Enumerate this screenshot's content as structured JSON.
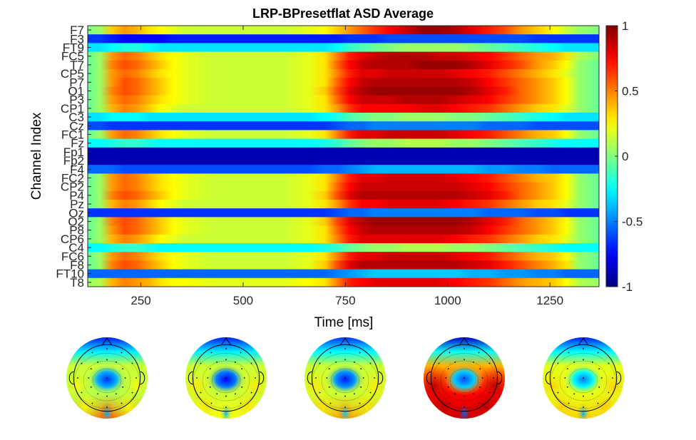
{
  "chart_data": {
    "type": "heatmap",
    "title": "LRP-BPresetflat ASD Average",
    "xlabel": "Time [ms]",
    "ylabel": "Channel Index",
    "xlim": [
      120,
      1370
    ],
    "x_ticks": [
      250,
      500,
      750,
      1000,
      1250
    ],
    "x_tick_labels": [
      "250",
      "500",
      "750",
      "1000",
      "1250"
    ],
    "channels": [
      "F7",
      "F3",
      "FT9",
      "FC5",
      "T7",
      "CP5",
      "P7",
      "O1",
      "P3",
      "CP1",
      "C3",
      "Cz",
      "FC1",
      "Fz",
      "Fp1",
      "Fp2",
      "F4",
      "FC2",
      "CP2",
      "P4",
      "Pz",
      "Oz",
      "O2",
      "P8",
      "CP6",
      "C4",
      "FC6",
      "F8",
      "FT10",
      "T8"
    ],
    "y_tick_labels": [
      "F7",
      "F3",
      "FT9",
      "FC5",
      "T7",
      "CP5",
      "P7",
      "O1",
      "P3",
      "CP1",
      "C3",
      "Cz",
      "FC1",
      "Fz",
      "Fp1",
      "Fp2",
      "F4",
      "FC2",
      "CP2",
      "P4",
      "Pz",
      "Oz",
      "O2",
      "P8",
      "CP6",
      "C4",
      "FC6",
      "F8",
      "FT10",
      "T8"
    ],
    "time_points": [
      120,
      150,
      180,
      210,
      240,
      270,
      300,
      330,
      360,
      420,
      480,
      540,
      600,
      660,
      700,
      730,
      760,
      790,
      820,
      860,
      900,
      940,
      980,
      1020,
      1060,
      1100,
      1140,
      1180,
      1220,
      1260,
      1290,
      1320,
      1370
    ],
    "values": [
      [
        0.0,
        0.05,
        0.35,
        0.45,
        0.4,
        0.3,
        0.25,
        0.2,
        0.15,
        0.15,
        0.15,
        0.15,
        0.15,
        0.2,
        0.25,
        0.35,
        0.45,
        0.55,
        0.65,
        0.75,
        0.85,
        0.95,
        0.95,
        0.9,
        0.8,
        0.7,
        0.6,
        0.45,
        0.35,
        0.25,
        0.15,
        0.05,
        0.0
      ],
      [
        -0.65,
        -0.65,
        -0.7,
        -0.75,
        -0.75,
        -0.75,
        -0.75,
        -0.7,
        -0.7,
        -0.7,
        -0.7,
        -0.7,
        -0.7,
        -0.7,
        -0.7,
        -0.7,
        -0.65,
        -0.65,
        -0.65,
        -0.6,
        -0.6,
        -0.6,
        -0.6,
        -0.6,
        -0.6,
        -0.6,
        -0.6,
        -0.6,
        -0.65,
        -0.65,
        -0.65,
        -0.65,
        -0.65
      ],
      [
        -0.3,
        -0.3,
        -0.25,
        -0.2,
        -0.2,
        -0.25,
        -0.3,
        -0.3,
        -0.3,
        -0.3,
        -0.3,
        -0.3,
        -0.3,
        -0.3,
        -0.3,
        -0.25,
        -0.15,
        -0.1,
        -0.05,
        0.0,
        0.05,
        0.05,
        0.05,
        0.05,
        0.0,
        -0.05,
        -0.1,
        -0.15,
        -0.2,
        -0.25,
        -0.3,
        -0.3,
        -0.3
      ],
      [
        -0.05,
        0.05,
        0.45,
        0.55,
        0.5,
        0.4,
        0.3,
        0.25,
        0.2,
        0.15,
        0.15,
        0.15,
        0.15,
        0.2,
        0.3,
        0.5,
        0.7,
        0.8,
        0.85,
        0.9,
        0.9,
        0.9,
        0.85,
        0.85,
        0.8,
        0.75,
        0.65,
        0.55,
        0.45,
        0.4,
        0.3,
        0.1,
        0.0
      ],
      [
        -0.05,
        0.05,
        0.5,
        0.6,
        0.55,
        0.45,
        0.35,
        0.25,
        0.2,
        0.15,
        0.15,
        0.15,
        0.15,
        0.2,
        0.3,
        0.55,
        0.75,
        0.85,
        0.9,
        0.9,
        0.9,
        0.95,
        0.95,
        0.95,
        0.9,
        0.8,
        0.7,
        0.6,
        0.45,
        0.35,
        0.25,
        0.05,
        -0.05
      ],
      [
        -0.05,
        0.05,
        0.45,
        0.55,
        0.5,
        0.4,
        0.3,
        0.25,
        0.2,
        0.15,
        0.15,
        0.15,
        0.15,
        0.2,
        0.3,
        0.5,
        0.7,
        0.8,
        0.8,
        0.85,
        0.85,
        0.85,
        0.85,
        0.8,
        0.75,
        0.7,
        0.6,
        0.5,
        0.4,
        0.3,
        0.2,
        0.05,
        -0.05
      ],
      [
        -0.05,
        0.05,
        0.45,
        0.6,
        0.55,
        0.45,
        0.35,
        0.25,
        0.2,
        0.15,
        0.15,
        0.15,
        0.15,
        0.2,
        0.3,
        0.55,
        0.75,
        0.85,
        0.9,
        0.9,
        0.9,
        0.9,
        0.9,
        0.9,
        0.85,
        0.75,
        0.65,
        0.55,
        0.45,
        0.35,
        0.25,
        0.05,
        -0.05
      ],
      [
        -0.05,
        0.05,
        0.5,
        0.6,
        0.55,
        0.45,
        0.35,
        0.25,
        0.2,
        0.15,
        0.15,
        0.15,
        0.15,
        0.2,
        0.35,
        0.6,
        0.8,
        0.9,
        0.95,
        0.95,
        0.95,
        0.95,
        0.95,
        0.95,
        0.9,
        0.8,
        0.7,
        0.55,
        0.45,
        0.35,
        0.25,
        0.05,
        -0.05
      ],
      [
        -0.05,
        0.05,
        0.45,
        0.55,
        0.5,
        0.4,
        0.3,
        0.25,
        0.2,
        0.15,
        0.15,
        0.15,
        0.15,
        0.2,
        0.3,
        0.55,
        0.75,
        0.85,
        0.85,
        0.85,
        0.9,
        0.9,
        0.9,
        0.85,
        0.8,
        0.75,
        0.65,
        0.55,
        0.45,
        0.35,
        0.25,
        0.05,
        -0.05
      ],
      [
        -0.05,
        0.05,
        0.4,
        0.5,
        0.45,
        0.35,
        0.25,
        0.2,
        0.15,
        0.15,
        0.15,
        0.15,
        0.15,
        0.2,
        0.3,
        0.45,
        0.65,
        0.75,
        0.75,
        0.75,
        0.75,
        0.8,
        0.8,
        0.75,
        0.7,
        0.65,
        0.55,
        0.45,
        0.35,
        0.3,
        0.2,
        0.05,
        -0.05
      ],
      [
        -0.3,
        -0.3,
        -0.25,
        -0.25,
        -0.25,
        -0.3,
        -0.3,
        -0.3,
        -0.3,
        -0.3,
        -0.3,
        -0.3,
        -0.3,
        -0.3,
        -0.25,
        -0.2,
        -0.1,
        -0.05,
        0.0,
        0.0,
        0.05,
        0.05,
        0.05,
        0.0,
        0.0,
        -0.05,
        -0.1,
        -0.15,
        -0.2,
        -0.25,
        -0.3,
        -0.3,
        -0.3
      ],
      [
        -0.6,
        -0.6,
        -0.65,
        -0.65,
        -0.65,
        -0.65,
        -0.65,
        -0.65,
        -0.65,
        -0.65,
        -0.65,
        -0.65,
        -0.65,
        -0.65,
        -0.65,
        -0.6,
        -0.55,
        -0.55,
        -0.5,
        -0.5,
        -0.5,
        -0.5,
        -0.5,
        -0.5,
        -0.5,
        -0.55,
        -0.55,
        -0.55,
        -0.6,
        -0.6,
        -0.6,
        -0.6,
        -0.6
      ],
      [
        -0.05,
        0.05,
        0.45,
        0.55,
        0.5,
        0.4,
        0.3,
        0.25,
        0.2,
        0.15,
        0.15,
        0.15,
        0.15,
        0.2,
        0.3,
        0.5,
        0.7,
        0.8,
        0.8,
        0.85,
        0.85,
        0.85,
        0.85,
        0.8,
        0.75,
        0.7,
        0.6,
        0.5,
        0.4,
        0.35,
        0.25,
        0.05,
        -0.05
      ],
      [
        -0.25,
        -0.25,
        -0.2,
        -0.15,
        -0.15,
        -0.2,
        -0.25,
        -0.25,
        -0.25,
        -0.25,
        -0.25,
        -0.25,
        -0.25,
        -0.25,
        -0.2,
        -0.15,
        -0.05,
        0.0,
        0.05,
        0.05,
        0.1,
        0.1,
        0.1,
        0.05,
        0.05,
        0.0,
        -0.05,
        -0.1,
        -0.15,
        -0.2,
        -0.25,
        -0.25,
        -0.25
      ],
      [
        -0.9,
        -0.9,
        -0.9,
        -0.9,
        -0.9,
        -0.9,
        -0.9,
        -0.9,
        -0.9,
        -0.9,
        -0.9,
        -0.9,
        -0.9,
        -0.9,
        -0.9,
        -0.9,
        -0.9,
        -0.9,
        -0.9,
        -0.9,
        -0.9,
        -0.9,
        -0.9,
        -0.9,
        -0.9,
        -0.9,
        -0.9,
        -0.9,
        -0.9,
        -0.9,
        -0.9,
        -0.9,
        -0.9
      ],
      [
        -0.9,
        -0.9,
        -0.9,
        -0.9,
        -0.9,
        -0.9,
        -0.9,
        -0.9,
        -0.9,
        -0.9,
        -0.9,
        -0.9,
        -0.9,
        -0.9,
        -0.9,
        -0.9,
        -0.9,
        -0.9,
        -0.9,
        -0.9,
        -0.9,
        -0.9,
        -0.9,
        -0.9,
        -0.9,
        -0.9,
        -0.9,
        -0.9,
        -0.9,
        -0.9,
        -0.9,
        -0.9,
        -0.9
      ],
      [
        -0.55,
        -0.55,
        -0.55,
        -0.6,
        -0.6,
        -0.6,
        -0.6,
        -0.6,
        -0.6,
        -0.6,
        -0.6,
        -0.6,
        -0.6,
        -0.6,
        -0.55,
        -0.55,
        -0.5,
        -0.45,
        -0.4,
        -0.4,
        -0.4,
        -0.4,
        -0.4,
        -0.4,
        -0.4,
        -0.45,
        -0.45,
        -0.5,
        -0.5,
        -0.55,
        -0.55,
        -0.55,
        -0.55
      ],
      [
        -0.05,
        0.05,
        0.45,
        0.55,
        0.5,
        0.4,
        0.3,
        0.25,
        0.2,
        0.15,
        0.15,
        0.15,
        0.15,
        0.2,
        0.3,
        0.5,
        0.7,
        0.8,
        0.8,
        0.85,
        0.85,
        0.85,
        0.85,
        0.8,
        0.75,
        0.7,
        0.6,
        0.5,
        0.4,
        0.35,
        0.25,
        0.05,
        -0.05
      ],
      [
        -0.05,
        0.05,
        0.45,
        0.55,
        0.5,
        0.4,
        0.3,
        0.25,
        0.2,
        0.15,
        0.15,
        0.15,
        0.15,
        0.2,
        0.3,
        0.55,
        0.75,
        0.85,
        0.85,
        0.85,
        0.85,
        0.85,
        0.85,
        0.85,
        0.8,
        0.75,
        0.65,
        0.55,
        0.45,
        0.35,
        0.25,
        0.05,
        -0.05
      ],
      [
        -0.05,
        0.05,
        0.5,
        0.6,
        0.55,
        0.45,
        0.35,
        0.25,
        0.2,
        0.15,
        0.15,
        0.15,
        0.15,
        0.2,
        0.35,
        0.6,
        0.8,
        0.9,
        0.9,
        0.9,
        0.9,
        0.9,
        0.9,
        0.9,
        0.85,
        0.8,
        0.7,
        0.55,
        0.45,
        0.35,
        0.25,
        0.05,
        -0.05
      ],
      [
        -0.05,
        0.05,
        0.4,
        0.5,
        0.45,
        0.35,
        0.25,
        0.2,
        0.15,
        0.15,
        0.15,
        0.15,
        0.15,
        0.2,
        0.3,
        0.45,
        0.65,
        0.75,
        0.75,
        0.8,
        0.8,
        0.8,
        0.8,
        0.75,
        0.7,
        0.65,
        0.55,
        0.45,
        0.35,
        0.3,
        0.2,
        0.05,
        -0.05
      ],
      [
        -0.65,
        -0.65,
        -0.65,
        -0.65,
        -0.65,
        -0.65,
        -0.65,
        -0.65,
        -0.65,
        -0.65,
        -0.65,
        -0.65,
        -0.65,
        -0.65,
        -0.65,
        -0.6,
        -0.55,
        -0.55,
        -0.5,
        -0.5,
        -0.5,
        -0.5,
        -0.5,
        -0.5,
        -0.5,
        -0.55,
        -0.55,
        -0.55,
        -0.6,
        -0.6,
        -0.65,
        -0.65,
        -0.65
      ],
      [
        -0.05,
        0.05,
        0.5,
        0.6,
        0.55,
        0.45,
        0.35,
        0.25,
        0.2,
        0.15,
        0.15,
        0.15,
        0.15,
        0.2,
        0.35,
        0.6,
        0.8,
        0.9,
        0.95,
        0.95,
        0.95,
        0.95,
        0.95,
        0.95,
        0.9,
        0.8,
        0.7,
        0.55,
        0.45,
        0.35,
        0.25,
        0.05,
        -0.05
      ],
      [
        -0.05,
        0.05,
        0.45,
        0.6,
        0.55,
        0.45,
        0.35,
        0.25,
        0.2,
        0.15,
        0.15,
        0.15,
        0.15,
        0.2,
        0.3,
        0.55,
        0.75,
        0.85,
        0.9,
        0.9,
        0.9,
        0.9,
        0.9,
        0.9,
        0.85,
        0.75,
        0.65,
        0.55,
        0.45,
        0.35,
        0.25,
        0.05,
        -0.05
      ],
      [
        -0.05,
        0.05,
        0.4,
        0.5,
        0.45,
        0.35,
        0.25,
        0.2,
        0.15,
        0.15,
        0.15,
        0.15,
        0.15,
        0.2,
        0.3,
        0.5,
        0.7,
        0.8,
        0.8,
        0.8,
        0.8,
        0.8,
        0.8,
        0.75,
        0.7,
        0.65,
        0.55,
        0.45,
        0.35,
        0.3,
        0.2,
        0.05,
        -0.05
      ],
      [
        -0.25,
        -0.25,
        -0.2,
        -0.15,
        -0.15,
        -0.2,
        -0.25,
        -0.25,
        -0.25,
        -0.25,
        -0.25,
        -0.25,
        -0.25,
        -0.25,
        -0.2,
        -0.15,
        -0.05,
        0.0,
        0.05,
        0.05,
        0.1,
        0.1,
        0.1,
        0.05,
        0.05,
        0.0,
        -0.05,
        -0.1,
        -0.15,
        -0.2,
        -0.25,
        -0.25,
        -0.25
      ],
      [
        -0.05,
        0.05,
        0.45,
        0.55,
        0.5,
        0.4,
        0.3,
        0.25,
        0.2,
        0.15,
        0.15,
        0.15,
        0.15,
        0.2,
        0.3,
        0.5,
        0.7,
        0.8,
        0.8,
        0.85,
        0.85,
        0.85,
        0.85,
        0.8,
        0.75,
        0.7,
        0.6,
        0.5,
        0.4,
        0.35,
        0.25,
        0.05,
        -0.05
      ],
      [
        -0.05,
        0.05,
        0.5,
        0.6,
        0.55,
        0.45,
        0.35,
        0.25,
        0.2,
        0.15,
        0.15,
        0.15,
        0.15,
        0.2,
        0.35,
        0.6,
        0.8,
        0.9,
        0.9,
        0.9,
        0.9,
        0.9,
        0.9,
        0.9,
        0.85,
        0.8,
        0.7,
        0.6,
        0.5,
        0.4,
        0.3,
        0.05,
        -0.05
      ],
      [
        -0.55,
        -0.55,
        -0.55,
        -0.55,
        -0.55,
        -0.55,
        -0.55,
        -0.55,
        -0.55,
        -0.55,
        -0.55,
        -0.55,
        -0.55,
        -0.55,
        -0.55,
        -0.5,
        -0.45,
        -0.4,
        -0.35,
        -0.35,
        -0.35,
        -0.35,
        -0.35,
        -0.35,
        -0.4,
        -0.4,
        -0.45,
        -0.45,
        -0.5,
        -0.5,
        -0.55,
        -0.55,
        -0.55
      ],
      [
        0.05,
        0.1,
        0.4,
        0.5,
        0.45,
        0.4,
        0.3,
        0.25,
        0.25,
        0.2,
        0.2,
        0.2,
        0.2,
        0.25,
        0.3,
        0.5,
        0.7,
        0.75,
        0.8,
        0.8,
        0.8,
        0.8,
        0.8,
        0.75,
        0.7,
        0.65,
        0.55,
        0.45,
        0.4,
        0.35,
        0.25,
        0.1,
        0.05
      ]
    ],
    "colorbar": {
      "colormap": "jet",
      "range": [
        -1,
        1
      ],
      "ticks": [
        1,
        0.5,
        0,
        -0.5,
        -1
      ],
      "tick_labels": [
        "1",
        "0.5",
        "0",
        "-0.5",
        "-1"
      ]
    },
    "topoplots": [
      {
        "name": "topo-1",
        "front": -0.7,
        "center": -0.4,
        "sides": 0.1,
        "back": 0.55,
        "ring": 0.15
      },
      {
        "name": "topo-2",
        "front": -0.7,
        "center": -0.5,
        "sides": 0.15,
        "back": 0.25,
        "ring": 0.15
      },
      {
        "name": "topo-3",
        "front": -0.65,
        "center": -0.45,
        "sides": 0.15,
        "back": 0.45,
        "ring": 0.15
      },
      {
        "name": "topo-4",
        "front": -0.85,
        "center": -0.35,
        "sides": 0.75,
        "back": 0.85,
        "ring": 0.4
      },
      {
        "name": "topo-5",
        "front": -0.7,
        "center": -0.25,
        "sides": 0.2,
        "back": 0.35,
        "ring": 0.2
      }
    ],
    "colors": {
      "axis": "#262626",
      "text": "#000000",
      "head_outline": "#000000"
    }
  }
}
